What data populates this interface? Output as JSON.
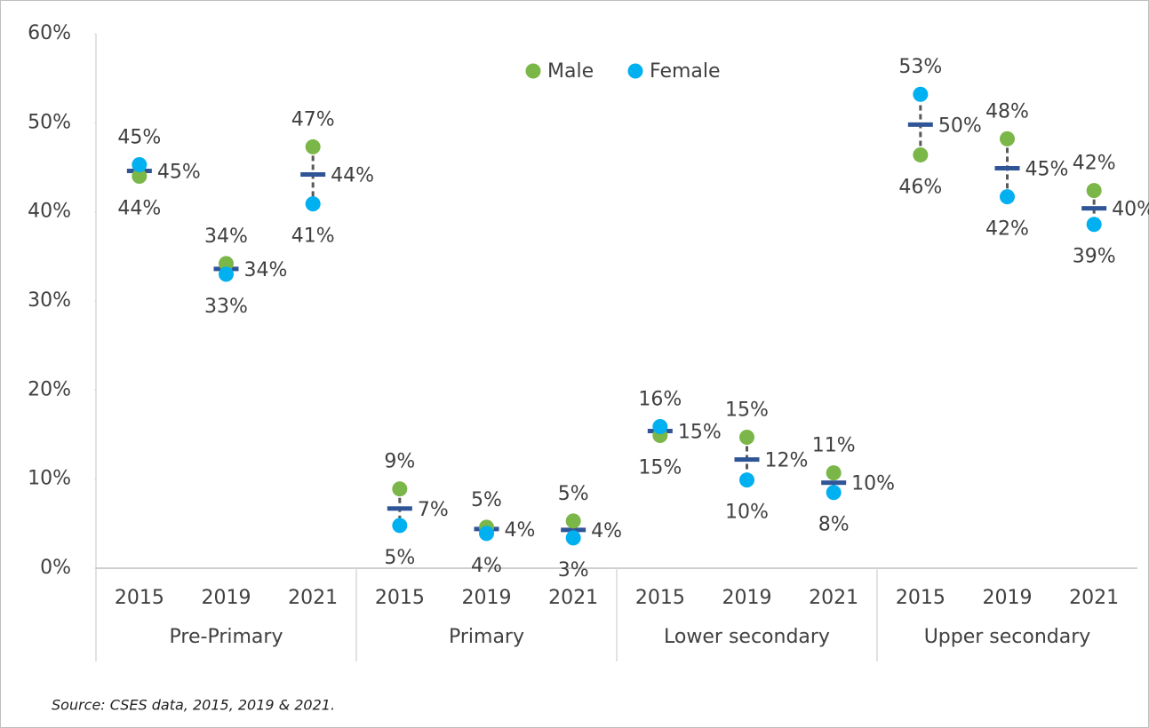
{
  "chart_data": {
    "type": "dot",
    "groups": [
      "Pre-Primary",
      "Primary",
      "Lower secondary",
      "Upper secondary"
    ],
    "categories": [
      "2015",
      "2019",
      "2021",
      "2015",
      "2019",
      "2021",
      "2015",
      "2019",
      "2021",
      "2015",
      "2019",
      "2021"
    ],
    "series": [
      {
        "name": "Male",
        "color": "#7ab648",
        "values": [
          44.0,
          34.2,
          47.3,
          8.9,
          4.6,
          5.3,
          14.9,
          14.7,
          10.7,
          46.4,
          48.2,
          42.4
        ],
        "value_labels": [
          "44%",
          "34%",
          "47%",
          "9%",
          "5%",
          "5%",
          "15%",
          "15%",
          "11%",
          "46%",
          "48%",
          "42%"
        ]
      },
      {
        "name": "Female",
        "color": "#00b0f0",
        "values": [
          45.3,
          33.0,
          40.9,
          4.8,
          3.9,
          3.4,
          15.9,
          9.9,
          8.5,
          53.2,
          41.7,
          38.6
        ],
        "value_labels": [
          "45%",
          "33%",
          "41%",
          "5%",
          "4%",
          "3%",
          "16%",
          "10%",
          "8%",
          "53%",
          "42%",
          "39%"
        ]
      }
    ],
    "total": {
      "color": "#2f5597",
      "values": [
        44.6,
        33.6,
        44.2,
        6.7,
        4.4,
        4.3,
        15.4,
        12.2,
        9.6,
        49.8,
        44.9,
        40.4
      ],
      "value_labels": [
        "45%",
        "34%",
        "44%",
        "7%",
        "4%",
        "4%",
        "15%",
        "12%",
        "10%",
        "50%",
        "45%",
        "40%"
      ]
    },
    "ylim": [
      0,
      60
    ],
    "yticks": [
      {
        "value": 0,
        "label": "0%"
      },
      {
        "value": 10,
        "label": "10%"
      },
      {
        "value": 20,
        "label": "20%"
      },
      {
        "value": 30,
        "label": "30%"
      },
      {
        "value": 40,
        "label": "40%"
      },
      {
        "value": 50,
        "label": "50%"
      },
      {
        "value": 60,
        "label": "60%"
      }
    ],
    "legend": "top",
    "source": "Source: CSES data, 2015, 2019 & 2021."
  }
}
